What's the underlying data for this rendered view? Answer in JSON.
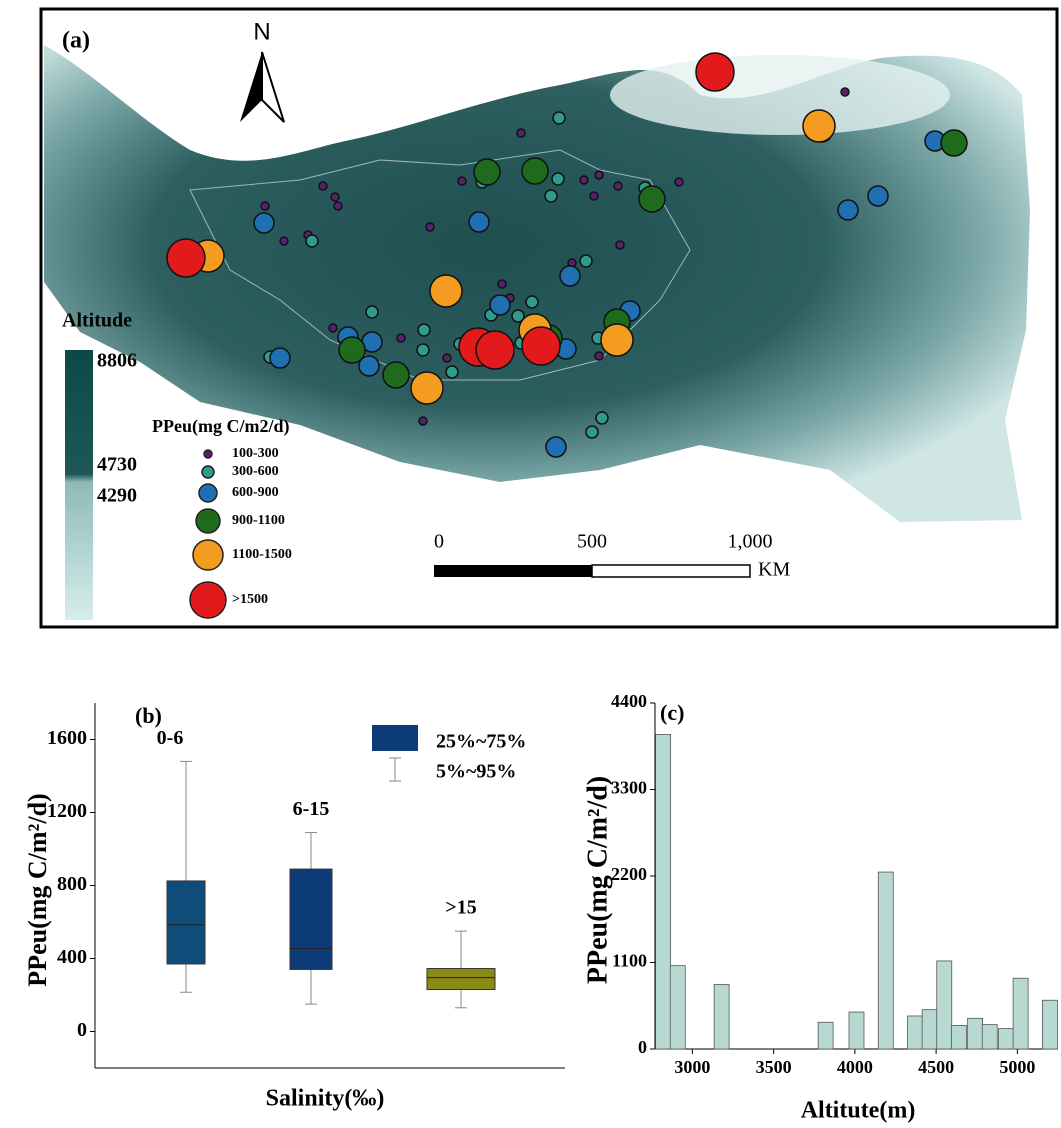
{
  "map": {
    "label": "(a)",
    "north": "N",
    "altitude_legend": {
      "title": "Altitude",
      "ticks": [
        8806,
        4730,
        4290
      ]
    },
    "ppeu_legend": {
      "title": "PPeu(mg C/m2/d)",
      "classes": [
        {
          "label": "100-300",
          "color": "#5b1f6e"
        },
        {
          "label": "300-600",
          "color": "#2e9b8c"
        },
        {
          "label": "600-900",
          "color": "#1f6fb2"
        },
        {
          "label": "900-1100",
          "color": "#1e6b1e"
        },
        {
          "label": "1100-1500",
          "color": "#f39c1f"
        },
        {
          "label": ">1500",
          "color": "#e31a1c"
        }
      ]
    },
    "scale_bar": {
      "ticks": [
        0,
        500,
        {
          "value": 1000,
          "label": "1,000"
        }
      ],
      "unit": "KM"
    }
  },
  "chart_data": [
    {
      "type": "box",
      "label": "(b)",
      "xlabel": "Salinity(‰)",
      "ylabel": "PPeu(mg C/m²/d)",
      "categories": [
        "0-6",
        "6-15",
        ">15"
      ],
      "boxes": [
        {
          "low": 215,
          "q1": 370,
          "median": 585,
          "q3": 825,
          "high": 1480,
          "color": "#0f4c7a"
        },
        {
          "low": 150,
          "q1": 340,
          "median": 455,
          "q3": 890,
          "high": 1090,
          "color": "#0d3b78"
        },
        {
          "low": 130,
          "q1": 230,
          "median": 295,
          "q3": 345,
          "high": 550,
          "color": "#8b8a14"
        }
      ],
      "legend": [
        "25%~75%",
        "5%~95%"
      ],
      "ylim": [
        -200,
        1800
      ],
      "yticks": [
        0,
        400,
        800,
        1200,
        1600
      ]
    },
    {
      "type": "bar",
      "label": "(c)",
      "xlabel": "Altitute(m)",
      "ylabel": "PPeu(mg C/m²/d)",
      "x": [
        2820,
        2910,
        3180,
        3820,
        4010,
        4190,
        4370,
        4460,
        4550,
        4640,
        4740,
        4830,
        4930,
        5020,
        5200
      ],
      "values": [
        4000,
        1060,
        820,
        340,
        470,
        2250,
        420,
        500,
        1120,
        300,
        390,
        310,
        260,
        900,
        620
      ],
      "color": "#b7d9d2",
      "xlim": [
        2770,
        5250
      ],
      "xticks": [
        3000,
        3500,
        4000,
        4500,
        5000
      ],
      "ylim": [
        0,
        4400
      ],
      "yticks": [
        0,
        1100,
        2200,
        3300,
        4400
      ]
    }
  ]
}
